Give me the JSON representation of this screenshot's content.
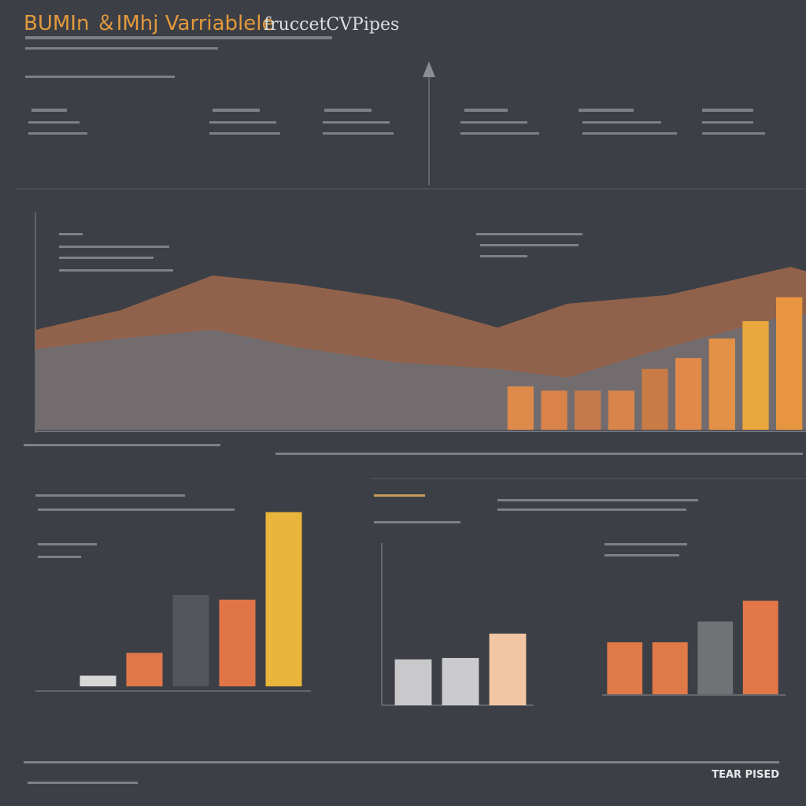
{
  "title_a": "BUMIn ＆IMhj Varriablele",
  "title_b": "fruccetCVPipes",
  "footer": "TEAR PISED",
  "chart_data": [
    {
      "type": "area",
      "xlim": [
        0,
        100
      ],
      "ylim": [
        0,
        100
      ],
      "x": [
        0,
        11,
        23,
        34,
        47,
        60,
        69,
        82,
        98,
        100
      ],
      "series": [
        {
          "color": "#a0684c",
          "values": [
            46,
            55,
            71,
            67,
            60,
            47,
            58,
            62,
            75,
            73
          ]
        },
        {
          "color": "#6c6e74",
          "values": [
            37,
            42,
            46,
            38,
            31,
            28,
            24,
            38,
            53,
            53
          ]
        }
      ]
    },
    {
      "type": "bar",
      "ylim": [
        0,
        100
      ],
      "values": [
        20,
        18,
        18,
        18,
        28,
        33,
        42,
        50,
        61
      ],
      "colors": [
        "#dd8a4a",
        "#d9834a",
        "#c57a4c",
        "#d9844b",
        "#c97b45",
        "#e0894a",
        "#e39146",
        "#e9a73d",
        "#e7963f"
      ]
    },
    {
      "type": "bar",
      "ylim": [
        0,
        240
      ],
      "values": [
        14,
        44,
        120,
        114,
        229
      ],
      "colors": [
        "#d8d8d8",
        "#e0784a",
        "#54565c",
        "#e07548",
        "#e9b53a"
      ]
    },
    {
      "type": "bar",
      "ylim": [
        0,
        120
      ],
      "values": [
        66,
        68,
        103
      ],
      "colors": [
        "#c9c9cb",
        "#cbcbcd",
        "#f2c6a2"
      ]
    },
    {
      "type": "bar",
      "ylim": [
        0,
        140
      ],
      "values": [
        70,
        70,
        98,
        126
      ],
      "colors": [
        "#e07a48",
        "#e07a48",
        "#707276",
        "#e2784a"
      ]
    }
  ]
}
